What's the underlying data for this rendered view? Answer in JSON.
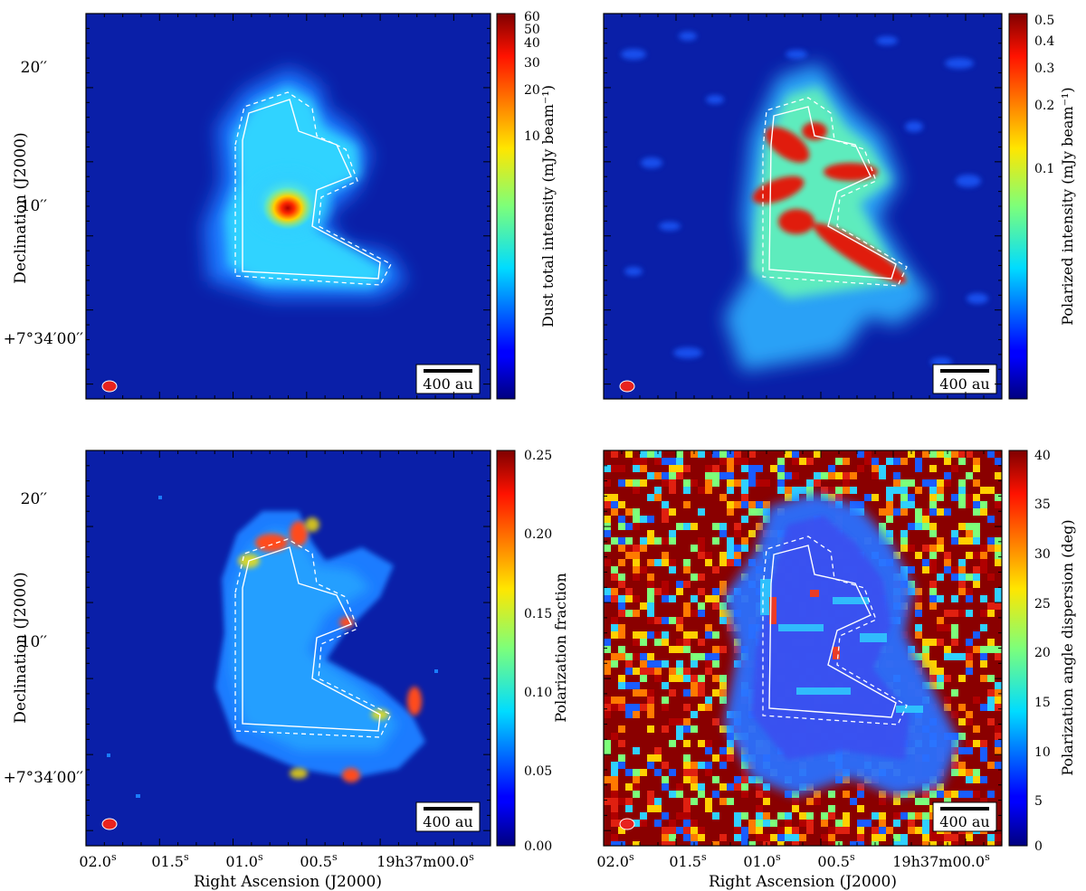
{
  "axes": {
    "ra_label": "Right Ascension (J2000)",
    "dec_label": "Declination (J2000)",
    "ra_ticks": [
      "02.0",
      "01.5",
      "01.0",
      "00.5",
      "19h37m00.0"
    ],
    "ra_tick_sup": [
      "s",
      "s",
      "s",
      "s",
      "s"
    ],
    "dec_ticks": [
      "20′′",
      "10′′",
      "+7°34′00′′"
    ]
  },
  "scalebar_label": "400 au",
  "panels": [
    {
      "id": "total-intensity",
      "colorbar_label": "Dust total intensity (mJy beam⁻¹)",
      "colorbar_scale": "log",
      "colorbar_ticks": [
        "60",
        "50",
        "40",
        "30",
        "20",
        "10"
      ]
    },
    {
      "id": "polarized-intensity",
      "colorbar_label": "Polarized intensity (mJy beam⁻¹)",
      "colorbar_scale": "log",
      "colorbar_ticks": [
        "0.5",
        "0.4",
        "0.3",
        "0.2",
        "0.1"
      ]
    },
    {
      "id": "polarization-fraction",
      "colorbar_label": "Polarization fraction",
      "colorbar_scale": "linear",
      "colorbar_ticks": [
        "0.25",
        "0.20",
        "0.15",
        "0.10",
        "0.05",
        "0.00"
      ]
    },
    {
      "id": "angle-dispersion",
      "colorbar_label": "Polarization angle dispersion (deg)",
      "colorbar_scale": "linear",
      "colorbar_ticks": [
        "40",
        "35",
        "30",
        "25",
        "20",
        "15",
        "10",
        "5",
        "0"
      ]
    }
  ],
  "colors": {
    "background_map": "#0a1fa8",
    "contour": "#ffffff",
    "beam": "#e8231e"
  }
}
